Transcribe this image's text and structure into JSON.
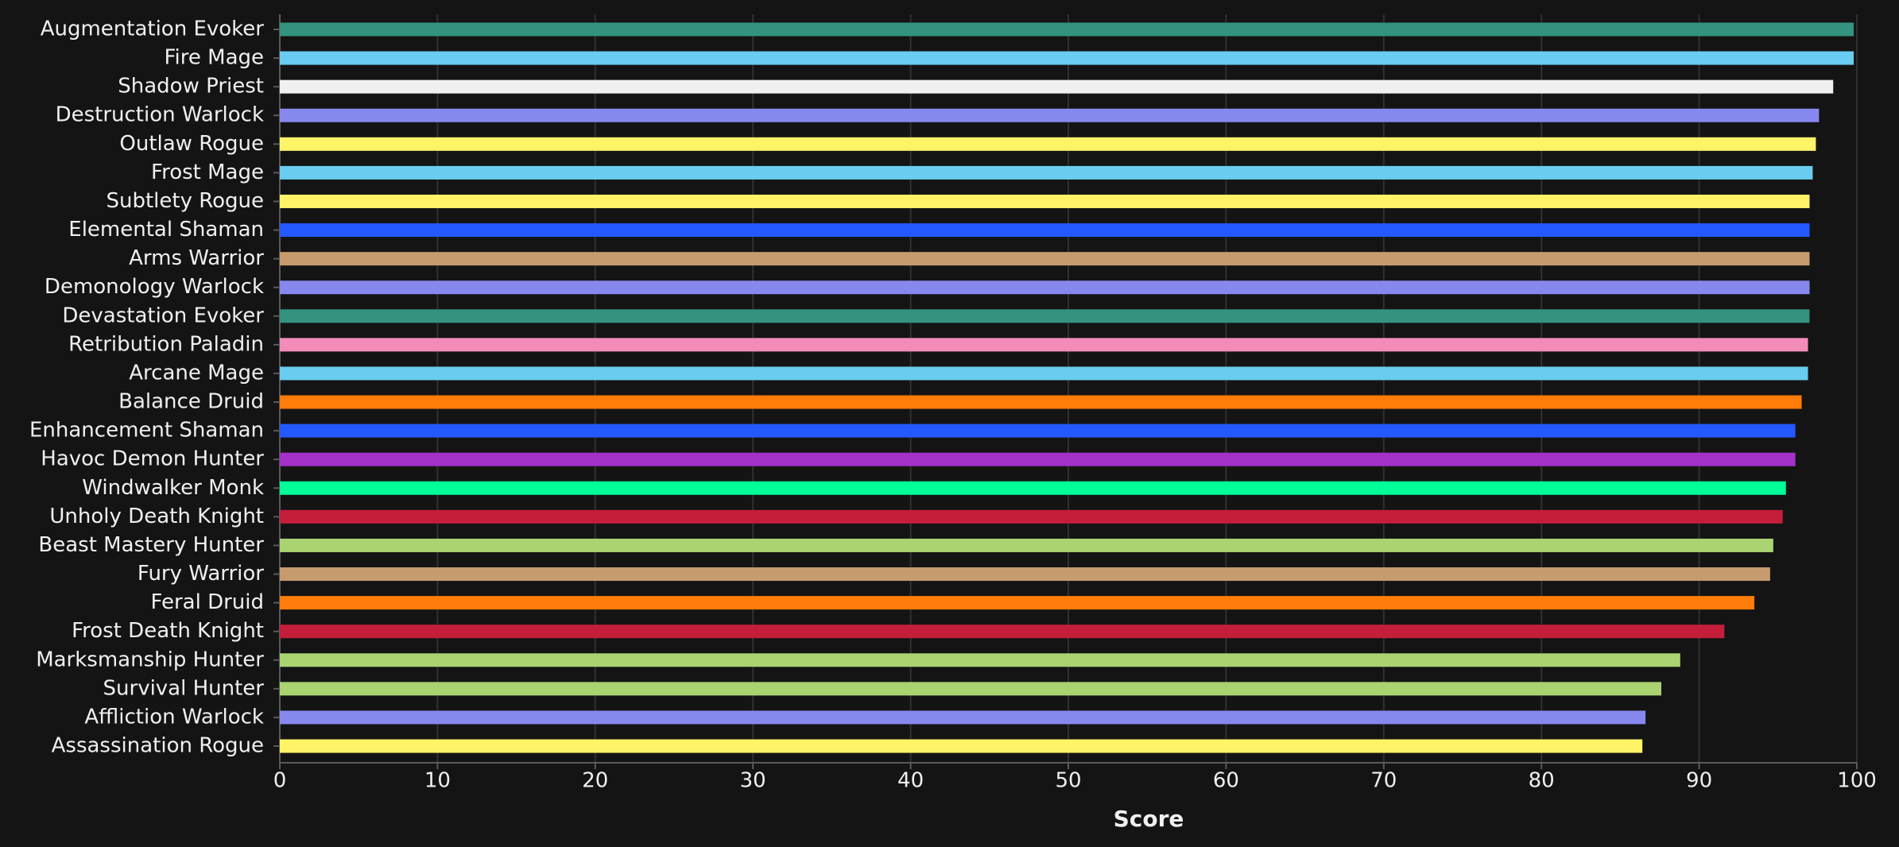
{
  "chart_data": {
    "type": "bar",
    "orientation": "horizontal",
    "x_label": "Score",
    "categories": [
      "Augmentation Evoker",
      "Fire Mage",
      "Shadow Priest",
      "Destruction Warlock",
      "Outlaw Rogue",
      "Frost Mage",
      "Subtlety Rogue",
      "Elemental Shaman",
      "Arms Warrior",
      "Demonology Warlock",
      "Devastation Evoker",
      "Retribution Paladin",
      "Arcane Mage",
      "Balance Druid",
      "Enhancement Shaman",
      "Havoc Demon Hunter",
      "Windwalker Monk",
      "Unholy Death Knight",
      "Beast Mastery Hunter",
      "Fury Warrior",
      "Feral Druid",
      "Frost Death Knight",
      "Marksmanship Hunter",
      "Survival Hunter",
      "Affliction Warlock",
      "Assassination Rogue"
    ],
    "values": [
      99.8,
      99.8,
      98.5,
      97.6,
      97.4,
      97.2,
      97.0,
      97.0,
      97.0,
      97.0,
      97.0,
      96.9,
      96.9,
      96.5,
      96.1,
      96.1,
      95.5,
      95.3,
      94.7,
      94.5,
      93.5,
      91.6,
      88.8,
      87.6,
      86.6,
      86.4
    ],
    "colors": [
      "#33937f",
      "#69ccf0",
      "#f0f0f0",
      "#8788ee",
      "#fff468",
      "#69ccf0",
      "#fff468",
      "#2459ff",
      "#c69b6d",
      "#8788ee",
      "#33937f",
      "#f48cba",
      "#69ccf0",
      "#ff7c0a",
      "#2459ff",
      "#a330c9",
      "#00ff98",
      "#c41e3a",
      "#aad372",
      "#c69b6d",
      "#ff7c0a",
      "#c41e3a",
      "#aad372",
      "#aad372",
      "#8788ee",
      "#fff468"
    ],
    "xlim": [
      0,
      100
    ],
    "xticks": [
      0,
      10,
      20,
      30,
      40,
      50,
      60,
      70,
      80,
      90,
      100
    ],
    "grid": true
  }
}
